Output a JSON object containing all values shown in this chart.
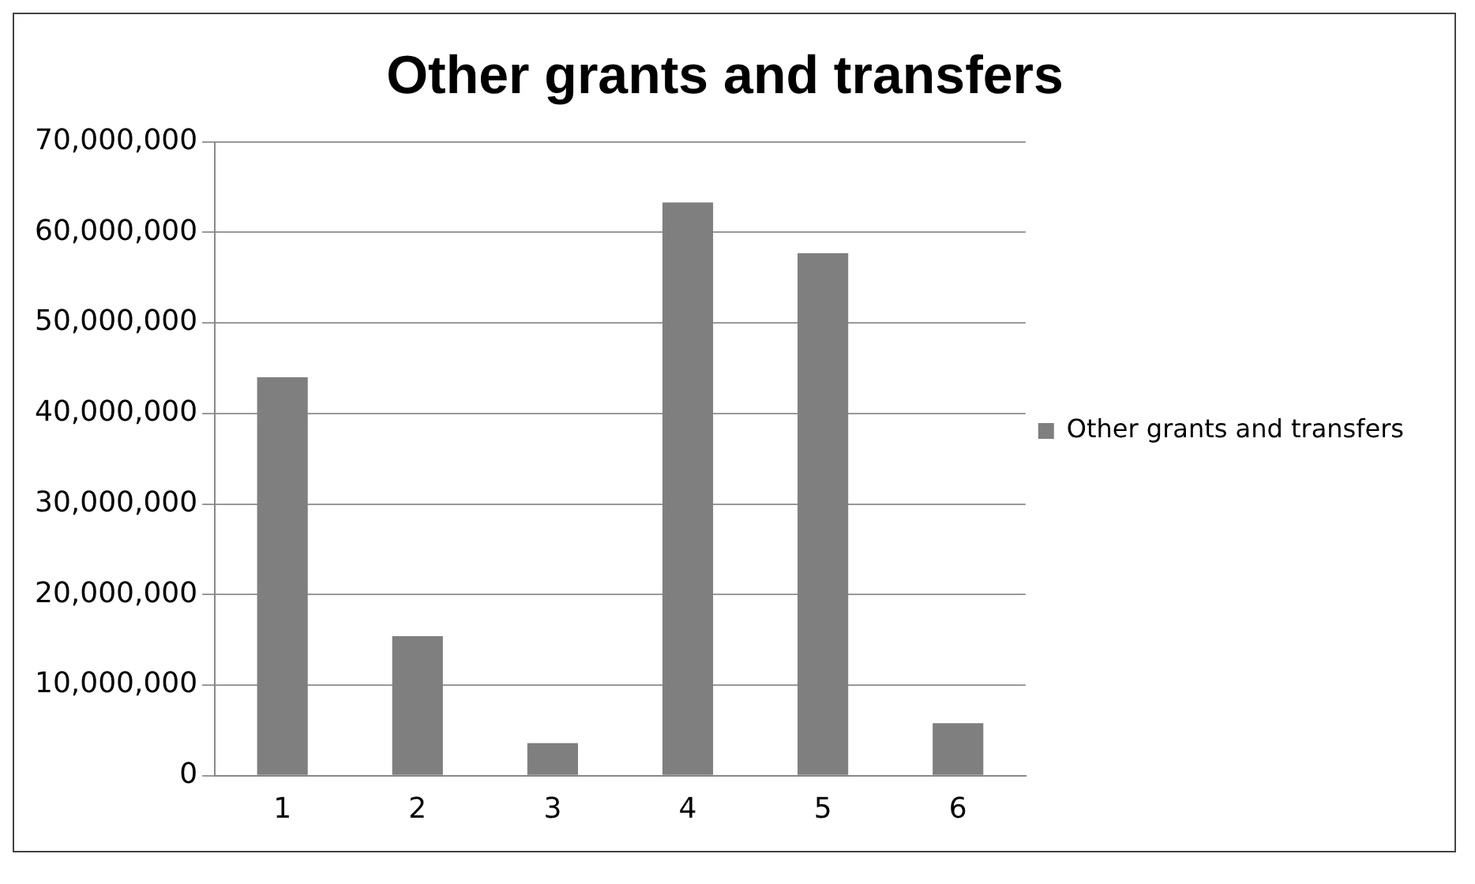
{
  "chart_data": {
    "type": "bar",
    "title": "Other grants and transfers",
    "categories": [
      "1",
      "2",
      "3",
      "4",
      "5",
      "6"
    ],
    "series": [
      {
        "name": "Other grants and transfers",
        "color": "#7f7f7f",
        "values": [
          44000000,
          15400000,
          3600000,
          63300000,
          57700000,
          5800000
        ]
      }
    ],
    "ylim": [
      0,
      70000000
    ],
    "yticks": [
      {
        "value": 0,
        "label": "0"
      },
      {
        "value": 10000000,
        "label": "10,000,000"
      },
      {
        "value": 20000000,
        "label": "20,000,000"
      },
      {
        "value": 30000000,
        "label": "30,000,000"
      },
      {
        "value": 40000000,
        "label": "40,000,000"
      },
      {
        "value": 50000000,
        "label": "50,000,000"
      },
      {
        "value": 60000000,
        "label": "60,000,000"
      },
      {
        "value": 70000000,
        "label": "70,000,000"
      }
    ],
    "grid": "y",
    "legend": "right"
  }
}
